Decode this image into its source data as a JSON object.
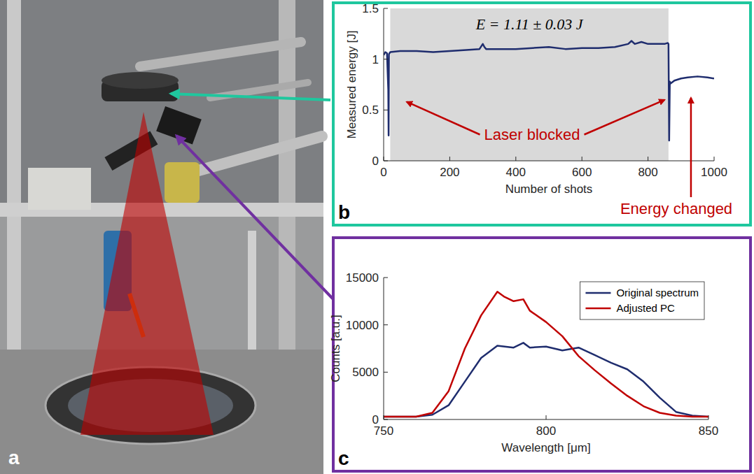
{
  "chart_data": [
    {
      "type": "line",
      "panel": "b",
      "title": "E = 1.11 ± 0.03 J",
      "x_label": "Number of shots",
      "y_label": "Measured energy [J]",
      "x": [
        0,
        5,
        10,
        14,
        15,
        16,
        20,
        50,
        100,
        150,
        200,
        250,
        290,
        300,
        305,
        310,
        350,
        400,
        450,
        500,
        550,
        600,
        650,
        700,
        740,
        750,
        760,
        780,
        800,
        850,
        860,
        862,
        864,
        866,
        868,
        880,
        900,
        920,
        950,
        980,
        1000
      ],
      "series": [
        {
          "color": "#1f2d6e",
          "values": [
            1.04,
            1.07,
            1.06,
            0.7,
            0.25,
            1.05,
            1.07,
            1.08,
            1.08,
            1.07,
            1.08,
            1.09,
            1.1,
            1.15,
            1.12,
            1.1,
            1.1,
            1.1,
            1.11,
            1.12,
            1.1,
            1.11,
            1.11,
            1.12,
            1.15,
            1.18,
            1.15,
            1.17,
            1.15,
            1.15,
            1.16,
            1.15,
            0.2,
            0.78,
            0.76,
            0.79,
            0.81,
            0.82,
            0.83,
            0.82,
            0.81
          ]
        }
      ],
      "shaded_range": [
        20,
        862
      ],
      "xlim": [
        0,
        1000
      ],
      "xticks": [
        0,
        200,
        400,
        600,
        800,
        1000
      ],
      "ylim": [
        0,
        1.5
      ],
      "yticks": [
        0,
        0.5,
        1,
        1.5
      ],
      "annotations": [
        {
          "text": "Laser blocked",
          "points": [
            [
              70,
              0.58
            ],
            [
              850,
              0.6
            ]
          ]
        },
        {
          "text": "Energy changed",
          "points": [
            [
              930,
              0.62
            ]
          ]
        }
      ],
      "grid": false
    },
    {
      "type": "line",
      "panel": "c",
      "x_label": "Wavelength [μm]",
      "y_label": "Counts [a.u.]",
      "series": [
        {
          "name": "Original spectrum",
          "color": "#1f2d6e",
          "x": [
            750,
            760,
            765,
            770,
            775,
            780,
            785,
            790,
            793,
            795,
            800,
            805,
            810,
            815,
            820,
            825,
            830,
            835,
            840,
            845,
            850
          ],
          "values": [
            300,
            300,
            500,
            1500,
            4000,
            6500,
            7800,
            7600,
            8100,
            7600,
            7700,
            7300,
            7600,
            6800,
            6000,
            5300,
            4000,
            2300,
            800,
            400,
            300
          ]
        },
        {
          "name": "Adjusted PC",
          "color": "#c00000",
          "x": [
            750,
            760,
            765,
            770,
            775,
            780,
            785,
            787,
            790,
            793,
            795,
            800,
            805,
            810,
            815,
            820,
            825,
            830,
            835,
            840,
            845,
            850
          ],
          "values": [
            300,
            300,
            700,
            3000,
            7500,
            11000,
            13500,
            13000,
            12500,
            12700,
            11500,
            10300,
            8800,
            6700,
            5200,
            3800,
            2500,
            1400,
            700,
            400,
            300,
            300
          ]
        }
      ],
      "xlim": [
        750,
        850
      ],
      "xticks": [
        750,
        800,
        850
      ],
      "ylim": [
        0,
        15000
      ],
      "yticks": [
        0,
        5000,
        10000,
        15000
      ],
      "legend": "northeast",
      "grid": false
    }
  ],
  "photo": {
    "panel": "a"
  }
}
